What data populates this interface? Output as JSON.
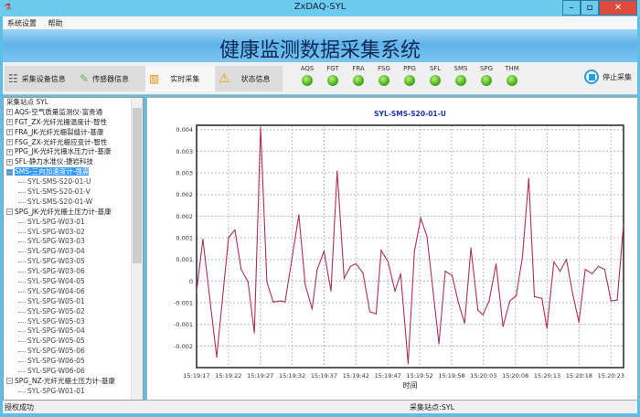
{
  "window": {
    "title": "ZxDAQ-SYL",
    "minimize": "–",
    "maximize": "▫",
    "close": "✕"
  },
  "menu": [
    "系统设置",
    "帮助"
  ],
  "banner": {
    "title": "健康监测数据采集系统"
  },
  "toolbar": {
    "buttons": [
      {
        "label": "采集设备信息",
        "icon": "device-list-icon"
      },
      {
        "label": "传感器信息",
        "icon": "sensor-icon"
      },
      {
        "label": "实时采集",
        "icon": "bar-chart-icon",
        "active": true
      },
      {
        "label": "状态信息",
        "icon": "warning-icon"
      }
    ],
    "indicators": [
      {
        "label": "AQS",
        "status": "green"
      },
      {
        "label": "FGT",
        "status": "green"
      },
      {
        "label": "FRA",
        "status": "green"
      },
      {
        "label": "FSG",
        "status": "green"
      },
      {
        "label": "PPG",
        "status": "green"
      },
      {
        "label": "SFL",
        "status": "green"
      },
      {
        "label": "SMS",
        "status": "green"
      },
      {
        "label": "SPG",
        "status": "green"
      },
      {
        "label": "THM",
        "status": "green"
      }
    ],
    "stop_label": "停止采集"
  },
  "tree": {
    "root": "采集站点 SYL",
    "rows": [
      {
        "label": "AQS-空气质量监测仪-富贵通",
        "type": "group",
        "expanded": false
      },
      {
        "label": "FGT_ZX-光纤光栅温度计-智性",
        "type": "group",
        "expanded": false
      },
      {
        "label": "FRA_JK-光纤光栅裂缝计-基康",
        "type": "group",
        "expanded": false
      },
      {
        "label": "FSG_ZX-光纤光栅应变计-智性",
        "type": "group",
        "expanded": false
      },
      {
        "label": "PPG_JK-光纤光栅水压力计-基康",
        "type": "group",
        "expanded": false
      },
      {
        "label": "SFL-静力水准仪-捷岩科技",
        "type": "group",
        "expanded": false
      },
      {
        "label": "SMS-三向加速度计-强震",
        "type": "group",
        "expanded": true,
        "selected": true
      },
      {
        "label": "SYL-SMS-S20-01-U",
        "type": "child"
      },
      {
        "label": "SYL-SMS-S20-01-V",
        "type": "child"
      },
      {
        "label": "SYL-SMS-S20-01-W",
        "type": "child"
      },
      {
        "label": "SPG_JK-光纤光栅土压力计-基康",
        "type": "group",
        "expanded": true
      },
      {
        "label": "SYL-SPG-W03-01",
        "type": "child"
      },
      {
        "label": "SYL-SPG-W03-02",
        "type": "child"
      },
      {
        "label": "SYL-SPG-W03-03",
        "type": "child"
      },
      {
        "label": "SYL-SPG-W03-04",
        "type": "child"
      },
      {
        "label": "SYL-SPG-W03-05",
        "type": "child"
      },
      {
        "label": "SYL-SPG-W03-06",
        "type": "child"
      },
      {
        "label": "SYL-SPG-W04-05",
        "type": "child"
      },
      {
        "label": "SYL-SPG-W04-06",
        "type": "child"
      },
      {
        "label": "SYL-SPG-W05-01",
        "type": "child"
      },
      {
        "label": "SYL-SPG-W05-02",
        "type": "child"
      },
      {
        "label": "SYL-SPG-W05-03",
        "type": "child"
      },
      {
        "label": "SYL-SPG-W05-04",
        "type": "child"
      },
      {
        "label": "SYL-SPG-W05-05",
        "type": "child"
      },
      {
        "label": "SYL-SPG-W05-06",
        "type": "child"
      },
      {
        "label": "SYL-SPG-W06-05",
        "type": "child"
      },
      {
        "label": "SYL-SPG-W06-06",
        "type": "child"
      },
      {
        "label": "SPG_NZ-光纤光栅土压力计-基康",
        "type": "group",
        "expanded": true
      },
      {
        "label": "SYL-SPG-W01-01",
        "type": "child"
      }
    ]
  },
  "status": {
    "left": "授权成功",
    "center": "采集站点:SYL"
  },
  "chart_data": {
    "type": "line",
    "title": "SYL-SMS-S20-01-U",
    "xlabel": "时间",
    "ylabel": "",
    "ylim": [
      -0.002,
      0.0036
    ],
    "grid": true,
    "line_color": "#b03050",
    "title_color": "#2233aa",
    "x_ticks": [
      "15:19:17",
      "15:19:22",
      "15:19:27",
      "15:19:32",
      "15:19:37",
      "15:19:42",
      "15:19:47",
      "15:19:52",
      "15:19:58",
      "15:20:03",
      "15:20:08",
      "15:20:13",
      "15:20:18",
      "15:20:23"
    ],
    "y_ticks": [
      {
        "value": 0.0035,
        "label": "0.004"
      },
      {
        "value": 0.003,
        "label": "0.003"
      },
      {
        "value": 0.0025,
        "label": "0.003"
      },
      {
        "value": 0.002,
        "label": "0.002"
      },
      {
        "value": 0.0015,
        "label": "0.002"
      },
      {
        "value": 0.001,
        "label": "0.001"
      },
      {
        "value": 0.0005,
        "label": "0.001"
      },
      {
        "value": 0,
        "label": "0"
      },
      {
        "value": -0.0005,
        "label": "-0.001"
      },
      {
        "value": -0.001,
        "label": "-0.001"
      },
      {
        "value": -0.0015,
        "label": "-0.002"
      }
    ],
    "points": [
      [
        "15:19:17.0",
        -0.00025
      ],
      [
        "15:19:18.0",
        0.00097
      ],
      [
        "15:19:20.2",
        -0.00176
      ],
      [
        "15:19:22.1",
        0.00101
      ],
      [
        "15:19:23.1",
        0.00118
      ],
      [
        "15:19:24.1",
        0.00027
      ],
      [
        "15:19:25.2",
        -2e-05
      ],
      [
        "15:19:26.2",
        -0.0012
      ],
      [
        "15:19:27.2",
        0.00355
      ],
      [
        "15:19:28.2",
        -2e-05
      ],
      [
        "15:19:29.2",
        -0.00048
      ],
      [
        "15:19:30.4",
        -0.00046
      ],
      [
        "15:19:31.1",
        -0.00048
      ],
      [
        "15:19:33.3",
        0.00153
      ],
      [
        "15:19:34.3",
        -8e-05
      ],
      [
        "15:19:35.4",
        -0.00065
      ],
      [
        "15:19:36.2",
        0.00027
      ],
      [
        "15:19:37.3",
        0.00069
      ],
      [
        "15:19:38.4",
        -0.00023
      ],
      [
        "15:19:39.4",
        0.00254
      ],
      [
        "15:19:40.5",
        6e-05
      ],
      [
        "15:19:41.5",
        0.00034
      ],
      [
        "15:19:42.4",
        0.0004
      ],
      [
        "15:19:43.5",
        0.00019
      ],
      [
        "15:19:44.6",
        -0.00071
      ],
      [
        "15:19:45.6",
        -0.00076
      ],
      [
        "15:19:46.4",
        0.00071
      ],
      [
        "15:19:47.5",
        0.00044
      ],
      [
        "15:19:48.6",
        -0.00023
      ],
      [
        "15:19:49.5",
        0.00017
      ],
      [
        "15:19:50.7",
        -0.00191
      ],
      [
        "15:19:51.7",
        0.00069
      ],
      [
        "15:19:52.7",
        0.00145
      ],
      [
        "15:19:53.7",
        0.00103
      ],
      [
        "15:19:55.6",
        -0.00145
      ],
      [
        "15:19:56.6",
        0.00023
      ],
      [
        "15:19:57.7",
        0.00013
      ],
      [
        "15:19:58.7",
        -0.0005
      ],
      [
        "15:19:59.7",
        -0.00097
      ],
      [
        "15:20:00.7",
        0.00076
      ],
      [
        "15:20:01.8",
        -0.00067
      ],
      [
        "15:20:02.6",
        -0.00078
      ],
      [
        "15:20:03.6",
        -0.00046
      ],
      [
        "15:20:04.7",
        0.0004
      ],
      [
        "15:20:05.8",
        -0.00105
      ],
      [
        "15:20:06.9",
        -0.00046
      ],
      [
        "15:20:07.9",
        -0.00034
      ],
      [
        "15:20:08.9",
        0.00055
      ],
      [
        "15:20:09.9",
        0.00237
      ],
      [
        "15:20:10.8",
        -0.00036
      ],
      [
        "15:20:12.0",
        -0.0004
      ],
      [
        "15:20:12.8",
        -0.00109
      ],
      [
        "15:20:13.9",
        0.00044
      ],
      [
        "15:20:14.9",
        0.00023
      ],
      [
        "15:20:15.9",
        0.0005
      ],
      [
        "15:20:16.9",
        -0.00029
      ],
      [
        "15:20:17.9",
        -0.00095
      ],
      [
        "15:20:18.9",
        0.00027
      ],
      [
        "15:20:20.0",
        0.00017
      ],
      [
        "15:20:21.0",
        0.00034
      ],
      [
        "15:20:22.0",
        0.00027
      ],
      [
        "15:20:23.0",
        -0.00046
      ],
      [
        "15:20:24.0",
        -0.00044
      ],
      [
        "15:20:25.0",
        0.00132
      ]
    ]
  }
}
